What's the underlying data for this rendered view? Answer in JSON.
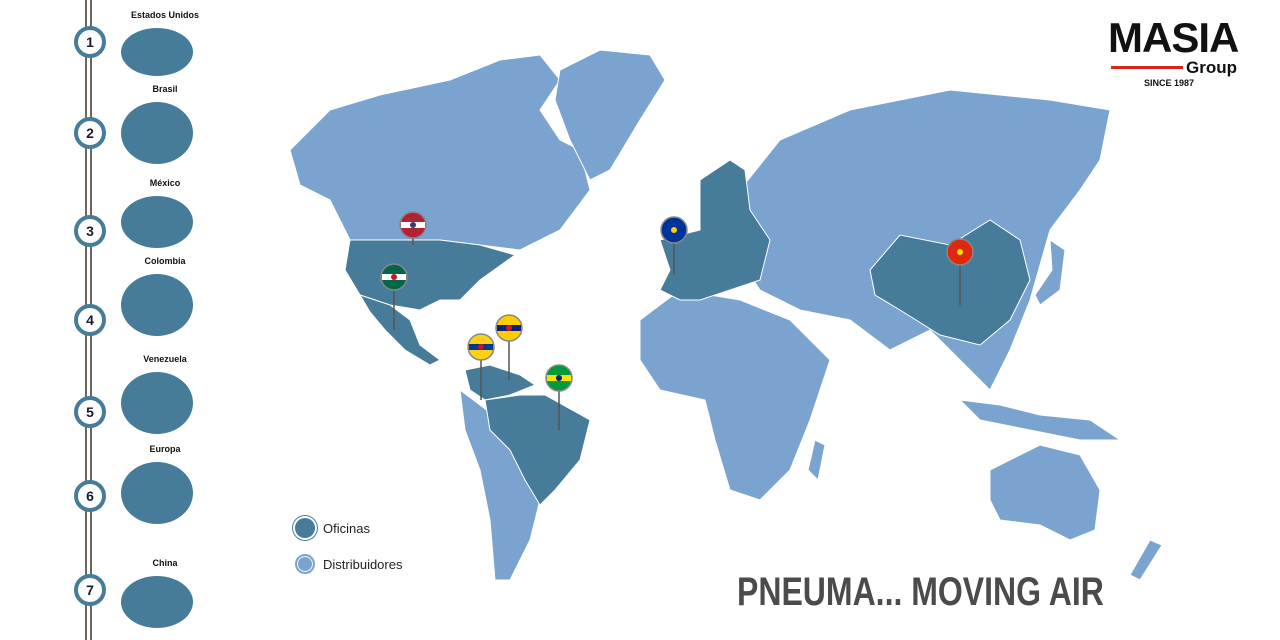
{
  "colors": {
    "offices": "#467b99",
    "distributors": "#7ba3cf",
    "rail": "#6d6660",
    "accent": "#d9261c"
  },
  "sidebar": {
    "items": [
      {
        "number": "1",
        "label": "Estados Unidos"
      },
      {
        "number": "2",
        "label": "Brasil"
      },
      {
        "number": "3",
        "label": "México"
      },
      {
        "number": "4",
        "label": "Colombia"
      },
      {
        "number": "5",
        "label": "Venezuela"
      },
      {
        "number": "6",
        "label": "Europa"
      },
      {
        "number": "7",
        "label": "China"
      }
    ]
  },
  "logo": {
    "name": "MASIA",
    "sub": "Group",
    "since": "SINCE 1987"
  },
  "legend": {
    "offices": "Oficinas",
    "distributors": "Distribuidores"
  },
  "pins": [
    {
      "country": "Estados Unidos",
      "flag": "us-flag-icon"
    },
    {
      "country": "México",
      "flag": "mexico-flag-icon"
    },
    {
      "country": "Venezuela",
      "flag": "venezuela-flag-icon"
    },
    {
      "country": "Colombia",
      "flag": "colombia-flag-icon"
    },
    {
      "country": "Brasil",
      "flag": "brazil-flag-icon"
    },
    {
      "country": "Europa",
      "flag": "eu-flag-icon"
    },
    {
      "country": "China",
      "flag": "china-flag-icon"
    }
  ],
  "slogan": "PNEUMA... MOVING AIR"
}
